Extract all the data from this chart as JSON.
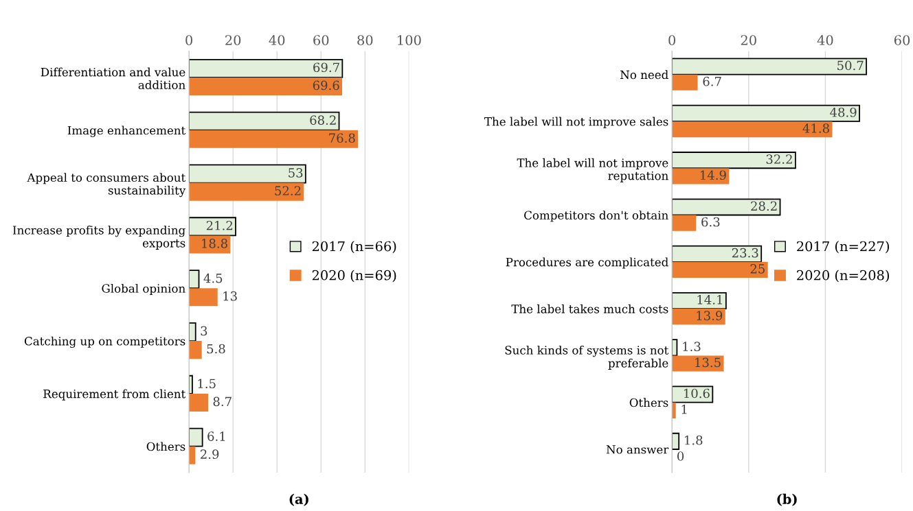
{
  "chart_data": [
    {
      "type": "bar",
      "orientation": "horizontal",
      "categories": [
        "Differentiation and value addition",
        "Image enhancement",
        "Appeal to consumers about sustainability",
        "Increase profits by expanding exports",
        "Global opinion",
        "Catching up on competitors",
        "Requirement from client",
        "Others"
      ],
      "series": [
        {
          "name": "2017 (n=66)",
          "color": "#e2efda",
          "values": [
            69.7,
            68.2,
            53,
            21.2,
            4.5,
            3,
            1.5,
            6.1
          ]
        },
        {
          "name": "2020 (n=69)",
          "color": "#ed7d31",
          "values": [
            69.6,
            76.8,
            52.2,
            18.8,
            13,
            5.8,
            8.7,
            2.9
          ]
        }
      ],
      "xlim": [
        0,
        100
      ],
      "xticks": [
        0,
        20,
        40,
        60,
        80,
        100
      ],
      "grid": "x",
      "legend": "right",
      "data_labels": true,
      "annotations": [
        "(a)"
      ]
    },
    {
      "type": "bar",
      "orientation": "horizontal",
      "categories": [
        "No need",
        "The label will not improve sales",
        "The label will not improve reputation",
        "Competitors don't obtain",
        "Procedures are complicated",
        "The label takes much costs",
        "Such kinds of systems is not preferable",
        "Others",
        "No answer"
      ],
      "series": [
        {
          "name": "2017 (n=227)",
          "color": "#e2efda",
          "values": [
            50.7,
            48.9,
            32.2,
            28.2,
            23.3,
            14.1,
            1.3,
            10.6,
            1.8
          ]
        },
        {
          "name": "2020 (n=208)",
          "color": "#ed7d31",
          "values": [
            6.7,
            41.8,
            14.9,
            6.3,
            25,
            13.9,
            13.5,
            1,
            0
          ]
        }
      ],
      "xlim": [
        0,
        60
      ],
      "xticks": [
        0,
        20,
        40,
        60
      ],
      "grid": "x",
      "legend": "right",
      "data_labels": true,
      "annotations": [
        "(b)"
      ]
    }
  ]
}
